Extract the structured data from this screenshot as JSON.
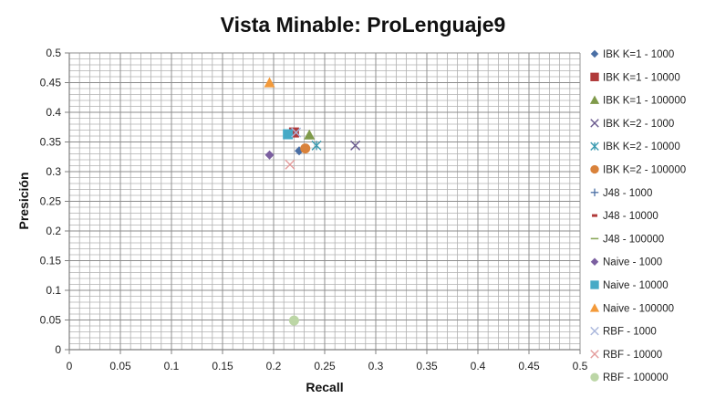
{
  "chart_data": {
    "type": "scatter",
    "title": "Vista Minable: ProLenguaje9",
    "xlabel": "Recall",
    "ylabel": "Presición",
    "xlim": [
      0,
      0.5
    ],
    "ylim": [
      0,
      0.5
    ],
    "x_ticks": [
      "0",
      "0.05",
      "0.1",
      "0.15",
      "0.2",
      "0.25",
      "0.3",
      "0.35",
      "0.4",
      "0.45",
      "0.5"
    ],
    "y_ticks": [
      "0",
      "0.05",
      "0.1",
      "0.15",
      "0.2",
      "0.25",
      "0.3",
      "0.35",
      "0.4",
      "0.45",
      "0.5"
    ],
    "x_tick_values": [
      0,
      0.05,
      0.1,
      0.15,
      0.2,
      0.25,
      0.3,
      0.35,
      0.4,
      0.45,
      0.5
    ],
    "y_tick_values": [
      0,
      0.05,
      0.1,
      0.15,
      0.2,
      0.25,
      0.3,
      0.35,
      0.4,
      0.45,
      0.5
    ],
    "minor_grid_step": 0.01,
    "grid": true,
    "legend_position": "right",
    "series": [
      {
        "name": "IBK K=1 - 1000",
        "marker": "diamond",
        "color": "#4a6fa5",
        "points": [
          [
            0.225,
            0.335
          ]
        ]
      },
      {
        "name": "IBK K=1 - 10000",
        "marker": "square",
        "color": "#b03a3a",
        "points": [
          [
            0.22,
            0.366
          ]
        ]
      },
      {
        "name": "IBK K=1 - 100000",
        "marker": "triangle",
        "color": "#7f9a4a",
        "points": [
          [
            0.235,
            0.362
          ]
        ]
      },
      {
        "name": "IBK K=2 - 1000",
        "marker": "x",
        "color": "#6a5a8e",
        "points": [
          [
            0.28,
            0.344
          ]
        ]
      },
      {
        "name": "IBK K=2 - 10000",
        "marker": "xbar",
        "color": "#3b9bb0",
        "points": [
          [
            0.242,
            0.344
          ]
        ]
      },
      {
        "name": "IBK K=2 - 100000",
        "marker": "circle",
        "color": "#d9823b",
        "points": [
          [
            0.231,
            0.339
          ]
        ]
      },
      {
        "name": "J48 - 1000",
        "marker": "plus",
        "color": "#4a6fa5",
        "points": []
      },
      {
        "name": "J48 - 10000",
        "marker": "dash",
        "color": "#b03a3a",
        "points": []
      },
      {
        "name": "J48 - 100000",
        "marker": "line",
        "color": "#8aa85a",
        "points": []
      },
      {
        "name": "Naive - 1000",
        "marker": "diamond",
        "color": "#7b5fa0",
        "points": [
          [
            0.196,
            0.328
          ]
        ]
      },
      {
        "name": "Naive - 10000",
        "marker": "square",
        "color": "#46aac6",
        "points": [
          [
            0.214,
            0.363
          ]
        ]
      },
      {
        "name": "Naive - 100000",
        "marker": "triangle",
        "color": "#f39a3a",
        "points": [
          [
            0.196,
            0.45
          ]
        ]
      },
      {
        "name": "RBF - 1000",
        "marker": "x",
        "color": "#a9b6dc",
        "points": [
          [
            0.222,
            0.366
          ]
        ]
      },
      {
        "name": "RBF - 10000",
        "marker": "x",
        "color": "#e49c9c",
        "points": [
          [
            0.216,
            0.312
          ]
        ]
      },
      {
        "name": "RBF - 100000",
        "marker": "circle",
        "color": "#bcd6a6",
        "points": [
          [
            0.22,
            0.049
          ]
        ]
      }
    ]
  }
}
